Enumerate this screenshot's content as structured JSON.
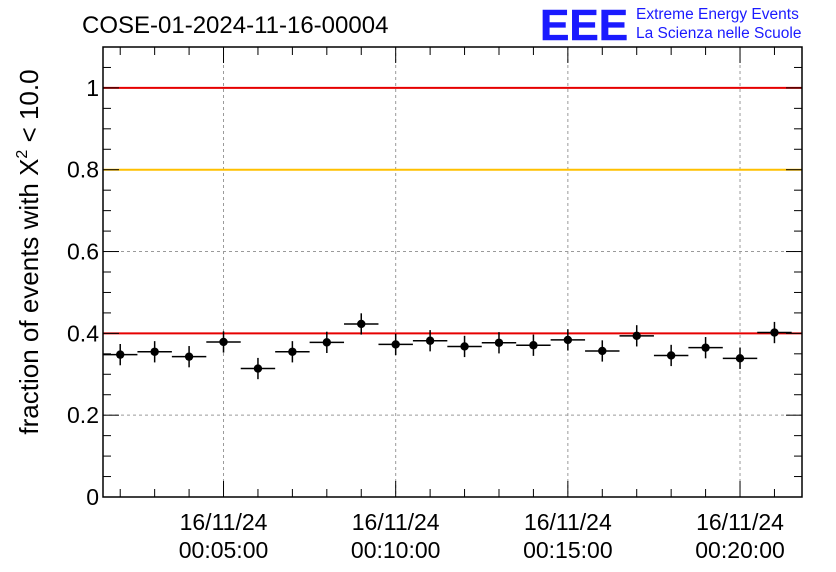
{
  "chart_data": {
    "type": "scatter",
    "title": "COSE-01-2024-11-16-00004",
    "ylabel_prefix": "fraction of events with ",
    "ylabel_symbol": "X",
    "ylabel_superscript": "2",
    "ylabel_suffix": " < 10.0",
    "logo": {
      "letters": "EEE",
      "line1": "Extreme Energy Events",
      "line2": "La Scienza nelle Scuole",
      "color": "#1a1aff"
    },
    "x_range_minutes": [
      0,
      20.3
    ],
    "ylim": [
      0,
      1.1
    ],
    "y_ticks": [
      {
        "value": 0,
        "label": "0"
      },
      {
        "value": 0.2,
        "label": "0.2"
      },
      {
        "value": 0.4,
        "label": "0.4"
      },
      {
        "value": 0.6,
        "label": "0.6"
      },
      {
        "value": 0.8,
        "label": "0.8"
      },
      {
        "value": 1.0,
        "label": "1"
      }
    ],
    "x_ticks": [
      {
        "minute": 3.5,
        "date": "16/11/24",
        "time": "00:05:00"
      },
      {
        "minute": 8.5,
        "date": "16/11/24",
        "time": "00:10:00"
      },
      {
        "minute": 13.5,
        "date": "16/11/24",
        "time": "00:15:00"
      },
      {
        "minute": 18.5,
        "date": "16/11/24",
        "time": "00:20:00"
      }
    ],
    "reference_lines": [
      {
        "y": 1.0,
        "color": "#e60000"
      },
      {
        "y": 0.8,
        "color": "#ffc000"
      },
      {
        "y": 0.4,
        "color": "#e60000"
      }
    ],
    "grid": true,
    "series": [
      {
        "x": [
          0.5,
          1.5,
          2.5,
          3.5,
          4.5,
          5.5,
          6.5,
          7.5,
          8.5,
          9.5,
          10.5,
          11.5,
          12.5,
          13.5,
          14.5,
          15.5,
          16.5,
          17.5,
          18.5,
          19.5
        ],
        "y": [
          0.348,
          0.355,
          0.343,
          0.379,
          0.314,
          0.355,
          0.378,
          0.423,
          0.373,
          0.382,
          0.368,
          0.377,
          0.371,
          0.384,
          0.357,
          0.394,
          0.346,
          0.365,
          0.339,
          0.402
        ],
        "y_err": [
          0.026,
          0.026,
          0.026,
          0.026,
          0.026,
          0.026,
          0.026,
          0.026,
          0.026,
          0.026,
          0.026,
          0.026,
          0.026,
          0.026,
          0.026,
          0.026,
          0.026,
          0.026,
          0.026,
          0.026
        ],
        "x_err_minutes": 0.5,
        "color": "#000000"
      }
    ]
  }
}
